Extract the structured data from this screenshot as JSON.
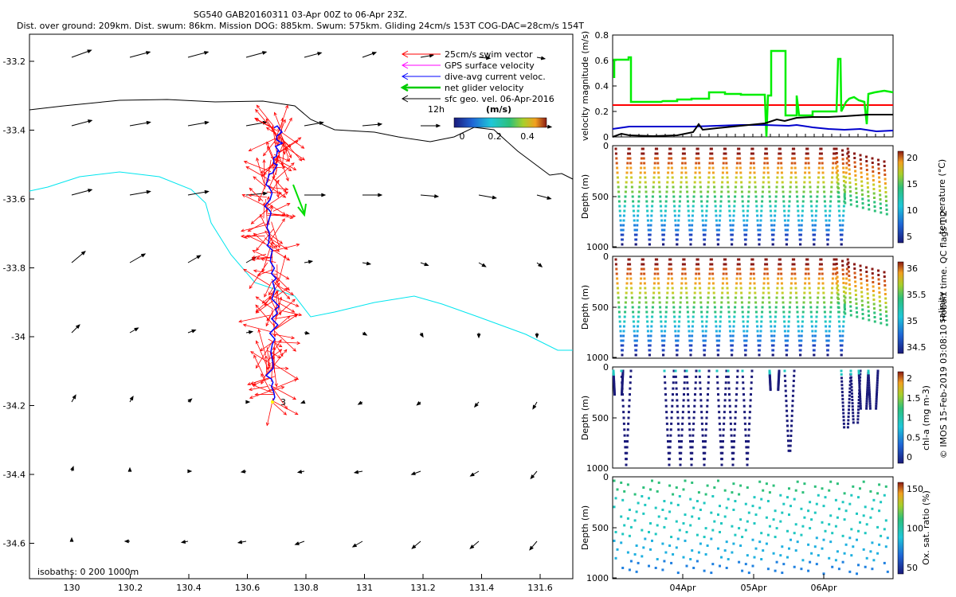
{
  "header": {
    "title_line1": "SG540 GAB20160311 03-Apr 00Z to 06-Apr 23Z.",
    "title_line2": "Dist. over ground: 209km. Dist. swum: 86km. Mission DOG: 885km. Swum: 575km. Gliding 24cm/s 153T COG-DAC=28cm/s 154T"
  },
  "map": {
    "x_ticks": [
      "130",
      "130.2",
      "130.4",
      "130.6",
      "130.8",
      "131",
      "131.2",
      "131.4",
      "131.6"
    ],
    "y_ticks": [
      "-33.2",
      "-33.4",
      "-33.6",
      "-33.8",
      "-34",
      "-34.2",
      "-34.4",
      "-34.6"
    ],
    "legend": [
      {
        "label": "25cm/s swim vector",
        "color": "#ff0000"
      },
      {
        "label": "GPS surface velocity",
        "color": "#ff00ff"
      },
      {
        "label": "dive-avg current veloc.",
        "color": "#0000ff"
      },
      {
        "label": "net glider velocity",
        "color": "#00cc00"
      },
      {
        "label": "sfc geo. vel. 06-Apr-2016",
        "color": "#000000"
      }
    ],
    "scale_label": "12h",
    "colorbar_title": "(m/s)",
    "colorbar_ticks": [
      "0",
      "0.2",
      "0.4"
    ],
    "isobath_label": "isobaths: 0   200  1000m",
    "end_marker": "3",
    "colors": {
      "isobath_200": "#000000",
      "isobath_1000": "#00e5ee",
      "swim": "#ff0000",
      "dac": "#0000ff",
      "net": "#00dd00"
    }
  },
  "panels": {
    "velocity": {
      "ylabel": "velocity magnitude (m/s)",
      "y_ticks": [
        "0",
        "0.2",
        "0.4",
        "0.6",
        "0.8"
      ]
    },
    "temperature": {
      "ylabel": "Depth (m)",
      "y_ticks": [
        "0",
        "500",
        "1000"
      ],
      "cbar_label": "temperature (°C)",
      "cbar_ticks": [
        "5",
        "10",
        "15",
        "20"
      ]
    },
    "salinity": {
      "ylabel": "Depth (m)",
      "y_ticks": [
        "0",
        "500",
        "1000"
      ],
      "cbar_label": "salinity",
      "cbar_ticks": [
        "34.5",
        "35",
        "35.5",
        "36"
      ]
    },
    "chla": {
      "ylabel": "Depth (m)",
      "y_ticks": [
        "0",
        "500",
        "1000"
      ],
      "cbar_label": "chl-a (mg m-3)",
      "cbar_ticks": [
        "0",
        "0.5",
        "1",
        "1.5",
        "2"
      ]
    },
    "oxygen": {
      "ylabel": "Depth (m)",
      "y_ticks": [
        "0",
        "500",
        "1000"
      ],
      "cbar_label": "Ox. sat. ratio (%)",
      "cbar_ticks": [
        "50",
        "100",
        "150"
      ]
    },
    "x_ticks": [
      "04Apr",
      "05Apr",
      "06Apr"
    ]
  },
  "footer": {
    "credit": "© IMOS 15-Feb-2019 03:08:10 Hobart time. QC flags 1  2"
  }
}
